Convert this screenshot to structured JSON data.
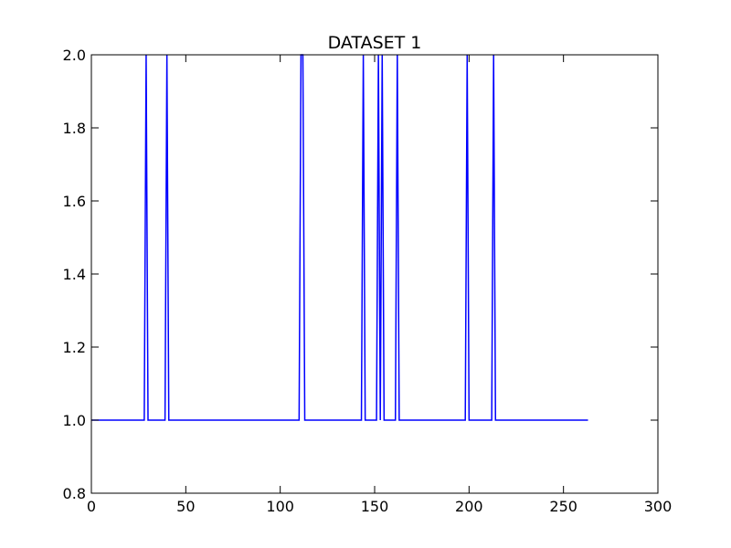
{
  "chart_data": {
    "type": "line",
    "title": "DATASET 1",
    "xlabel": "",
    "ylabel": "",
    "xlim": [
      0,
      300
    ],
    "ylim": [
      0.8,
      2.0
    ],
    "grid": false,
    "legend": "none",
    "x_ticks": [
      0,
      50,
      100,
      150,
      200,
      250,
      300
    ],
    "y_ticks": [
      0.8,
      1.0,
      1.2,
      1.4,
      1.6,
      1.8,
      2.0
    ],
    "x_tick_labels": [
      "0",
      "50",
      "100",
      "150",
      "200",
      "250",
      "300"
    ],
    "y_tick_labels": [
      "0.8",
      "1.0",
      "1.2",
      "1.4",
      "1.6",
      "1.8",
      "2.0"
    ],
    "series": [
      {
        "color": "#0000ff",
        "x": [
          0,
          28,
          29,
          30,
          39,
          40,
          41,
          110,
          111,
          112,
          113,
          143,
          144,
          145,
          151,
          152,
          153,
          154,
          155,
          161,
          162,
          163,
          198,
          199,
          200,
          212,
          213,
          214,
          263
        ],
        "y": [
          1,
          1,
          2,
          1,
          1,
          2,
          1,
          1,
          2,
          2,
          1,
          1,
          2,
          1,
          1,
          2,
          1,
          2,
          1,
          1,
          2,
          1,
          1,
          2,
          1,
          1,
          2,
          1,
          1
        ]
      }
    ]
  }
}
